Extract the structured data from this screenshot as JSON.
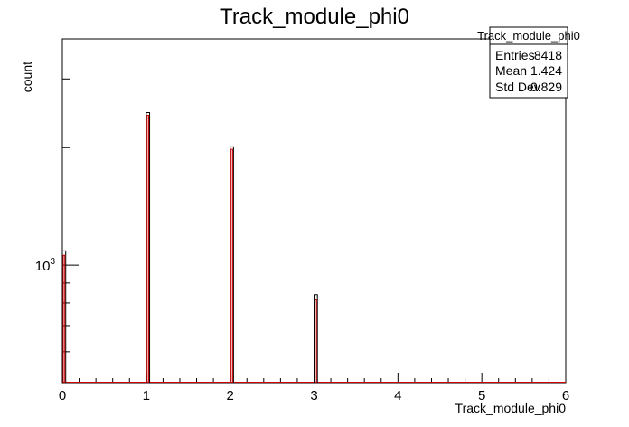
{
  "chart_data": {
    "type": "bar",
    "title": "Track_module_phi0",
    "xlabel": "Track_module_phi0",
    "ylabel": "count",
    "xlim": [
      0,
      6
    ],
    "ylim": [
      500,
      3800
    ],
    "log_y": true,
    "x_ticks": [
      "0",
      "1",
      "2",
      "3",
      "4",
      "5",
      "6"
    ],
    "y_tick_labels": [
      {
        "value": 1000,
        "label": "10",
        "exp": "3"
      }
    ],
    "series": [
      {
        "style": "black outline",
        "bin_width": 0.04,
        "bins": [
          {
            "x": 0.0,
            "value": 1088
          },
          {
            "x": 1.0,
            "value": 2460
          },
          {
            "x": 2.0,
            "value": 2010
          },
          {
            "x": 3.0,
            "value": 840
          }
        ]
      },
      {
        "style": "red outline",
        "bin_width": 0.04,
        "bins": [
          {
            "x": 0.0,
            "value": 1060
          },
          {
            "x": 1.0,
            "value": 2420
          },
          {
            "x": 2.0,
            "value": 1980
          },
          {
            "x": 3.0,
            "value": 815
          }
        ]
      }
    ],
    "stats_box": {
      "title": "Track_module_phi0",
      "rows": [
        {
          "label": "Entries",
          "value": "8418"
        },
        {
          "label": "Mean",
          "value": "1.424"
        },
        {
          "label": "Std Dev",
          "value": "0.829"
        }
      ],
      "position": "top-right"
    }
  }
}
